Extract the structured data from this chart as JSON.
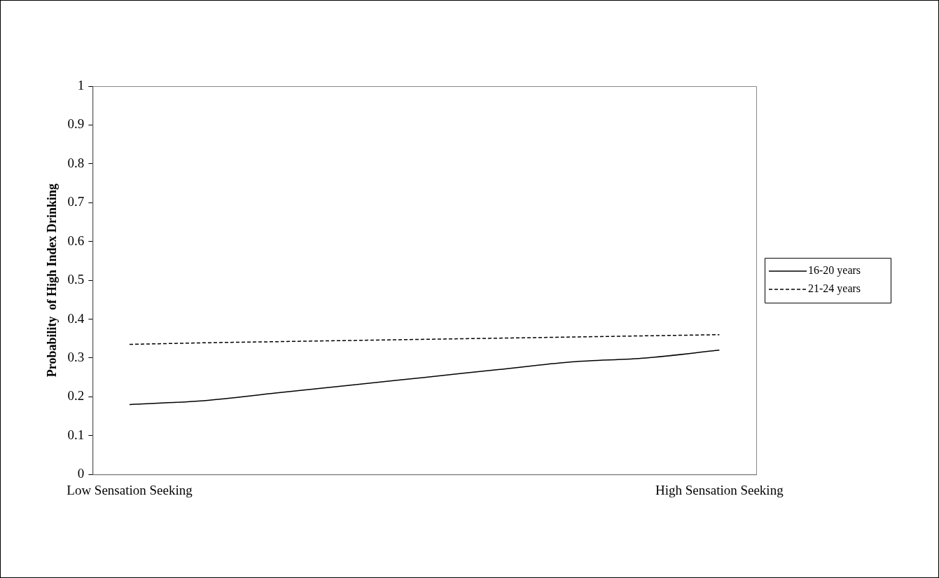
{
  "chart_data": {
    "type": "line",
    "ylabel": "Probability  of High Index Drinking",
    "categories": [
      "Low Sensation Seeking",
      null,
      null,
      null,
      null,
      null,
      null,
      null,
      "High Sensation Seeking"
    ],
    "series": [
      {
        "name": "16-20 years",
        "color": "#000000",
        "line_style": "solid",
        "values": [
          0.18,
          0.19,
          0.21,
          0.23,
          0.25,
          0.27,
          0.29,
          0.3,
          0.32
        ]
      },
      {
        "name": "21-24 years",
        "color": "#000000",
        "line_style": "dashed",
        "values": [
          0.335,
          0.339,
          0.342,
          0.345,
          0.348,
          0.351,
          0.354,
          0.357,
          0.36
        ]
      }
    ],
    "ylim": [
      0,
      1
    ],
    "yticks": [
      0,
      0.1,
      0.2,
      0.3,
      0.4,
      0.5,
      0.6,
      0.7,
      0.8,
      0.9,
      1
    ],
    "grid": false,
    "legend": "right",
    "marker": "none"
  }
}
